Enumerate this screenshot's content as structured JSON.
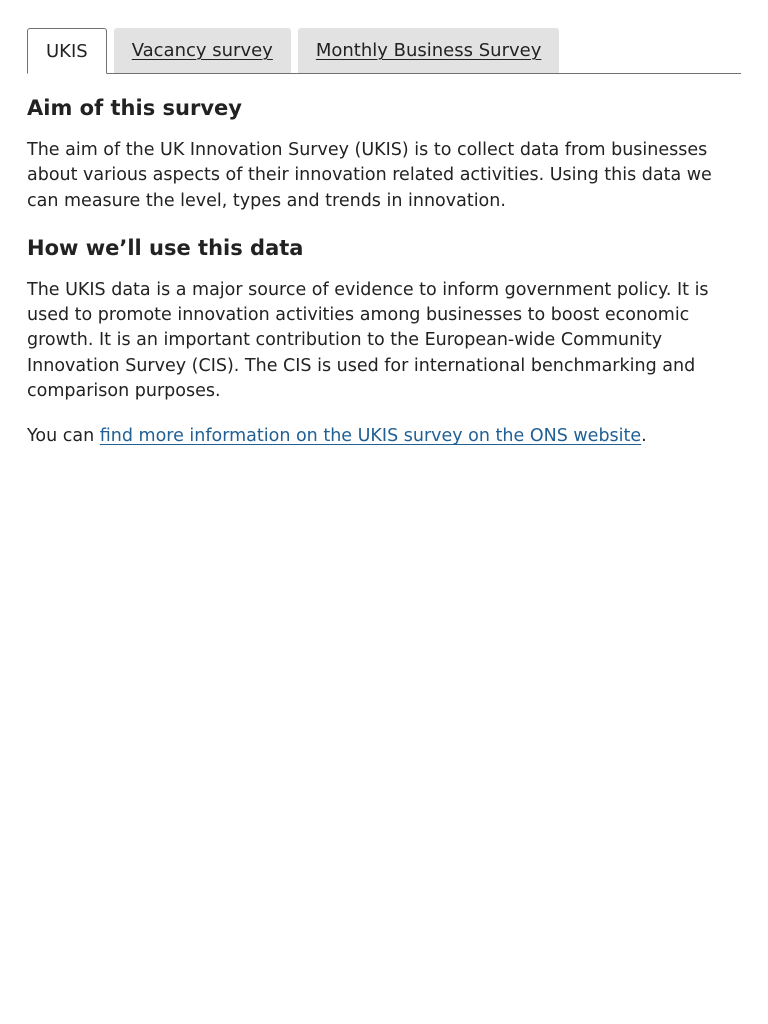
{
  "tabs": [
    {
      "label": "UKIS",
      "active": true
    },
    {
      "label": "Vacancy survey",
      "active": false
    },
    {
      "label": "Monthly Business Survey",
      "active": false
    }
  ],
  "panel": {
    "aim_heading": "Aim of this survey",
    "aim_text": "The aim of the UK Innovation Survey (UKIS) is to collect data from businesses about various aspects of their innovation related activities. Using this data we can measure the level, types and trends in innovation.",
    "use_heading": "How we’ll use this data",
    "use_text": "The UKIS data is a major source of evidence to inform government policy. It is used to promote innovation activities among businesses to boost economic growth. It is an important contribution to the European-wide Community Innovation Survey (CIS). The CIS is used for international benchmarking and comparison purposes.",
    "more_prefix": "You can ",
    "more_link": "find more information on the UKIS survey on the ONS website",
    "more_suffix": "."
  },
  "colors": {
    "link": "#206095",
    "tab_inactive_bg": "#e2e2e3",
    "tab_border": "#707071",
    "text": "#222222"
  }
}
